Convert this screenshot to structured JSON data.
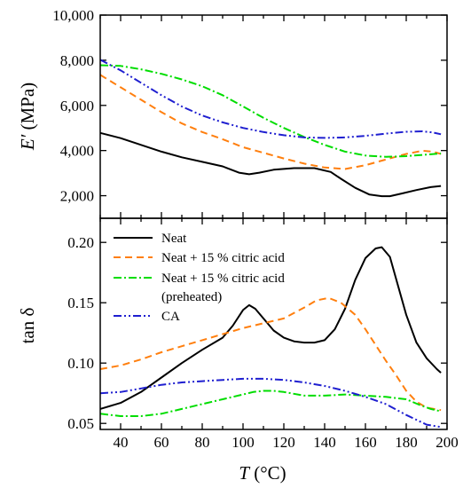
{
  "chart_data": [
    {
      "type": "line",
      "ylabel": "E′ (MPa)",
      "ylabel_italic_part": "E′",
      "ylabel_unit": "(MPa)",
      "xlim": [
        30,
        200
      ],
      "ylim": [
        1000,
        10000
      ],
      "ytick_values": [
        2000,
        4000,
        6000,
        8000,
        10000
      ],
      "ytick_labels": [
        "2,000",
        "4,000",
        "6,000",
        "8,000",
        "10,000"
      ],
      "series": [
        {
          "name": "Neat",
          "color": "#000000",
          "dash": "solid",
          "x": [
            30,
            40,
            50,
            60,
            70,
            80,
            90,
            98,
            103,
            108,
            115,
            125,
            135,
            143,
            148,
            155,
            162,
            168,
            172,
            178,
            185,
            192,
            197
          ],
          "y": [
            4780,
            4550,
            4250,
            3950,
            3700,
            3500,
            3300,
            3020,
            2950,
            3020,
            3150,
            3220,
            3220,
            3050,
            2750,
            2350,
            2050,
            1980,
            1980,
            2100,
            2250,
            2380,
            2430
          ]
        },
        {
          "name": "Neat + 15 % citric acid",
          "color": "#ff7f0e",
          "dash": "dashed",
          "x": [
            30,
            40,
            50,
            60,
            70,
            80,
            90,
            100,
            110,
            120,
            130,
            140,
            150,
            160,
            170,
            180,
            188,
            193,
            197
          ],
          "y": [
            7350,
            6800,
            6250,
            5700,
            5200,
            4820,
            4500,
            4150,
            3900,
            3650,
            3420,
            3250,
            3180,
            3350,
            3600,
            3850,
            3990,
            3950,
            3850
          ]
        },
        {
          "name": "Neat + 15 % citric acid (preheated)",
          "color": "#00dd00",
          "dash": "dashdot",
          "x": [
            30,
            40,
            50,
            60,
            70,
            80,
            90,
            100,
            110,
            120,
            130,
            140,
            150,
            160,
            170,
            180,
            190,
            197
          ],
          "y": [
            7780,
            7750,
            7600,
            7400,
            7150,
            6850,
            6450,
            5950,
            5450,
            5000,
            4600,
            4250,
            3950,
            3780,
            3720,
            3750,
            3820,
            3870
          ]
        },
        {
          "name": "CA",
          "color": "#1f1fd0",
          "dash": "dashdotdot",
          "x": [
            30,
            40,
            50,
            60,
            70,
            80,
            90,
            100,
            110,
            120,
            130,
            140,
            150,
            160,
            170,
            180,
            188,
            193,
            197
          ],
          "y": [
            8020,
            7550,
            7000,
            6450,
            5950,
            5550,
            5250,
            5000,
            4820,
            4680,
            4580,
            4560,
            4580,
            4650,
            4750,
            4830,
            4850,
            4800,
            4720
          ]
        }
      ]
    },
    {
      "type": "line",
      "ylabel": "tan δ",
      "xlabel": "T (°C)",
      "xlabel_italic_part": "T",
      "xlabel_unit": "(°C)",
      "xlim": [
        30,
        200
      ],
      "ylim": [
        0.045,
        0.22
      ],
      "xtick_labels": [
        "40",
        "60",
        "80",
        "100",
        "120",
        "140",
        "160",
        "180",
        "200"
      ],
      "ytick_values": [
        0.05,
        0.1,
        0.15,
        0.2
      ],
      "ytick_labels": [
        "0.05",
        "0.10",
        "0.15",
        "0.20"
      ],
      "legend": {
        "placement": "top-left",
        "entries": [
          "Neat",
          "Neat + 15 % citric acid",
          "Neat + 15 % citric acid",
          "CA"
        ],
        "continuation": "(preheated)"
      },
      "series": [
        {
          "name": "Neat",
          "color": "#000000",
          "dash": "solid",
          "x": [
            30,
            40,
            50,
            60,
            70,
            80,
            90,
            95,
            100,
            103,
            106,
            110,
            115,
            120,
            125,
            130,
            135,
            140,
            145,
            150,
            155,
            160,
            165,
            168,
            172,
            176,
            180,
            185,
            190,
            195,
            197
          ],
          "y": [
            0.062,
            0.067,
            0.076,
            0.088,
            0.1,
            0.111,
            0.121,
            0.131,
            0.144,
            0.148,
            0.145,
            0.137,
            0.127,
            0.121,
            0.118,
            0.117,
            0.117,
            0.119,
            0.128,
            0.145,
            0.169,
            0.187,
            0.195,
            0.196,
            0.188,
            0.164,
            0.14,
            0.117,
            0.104,
            0.095,
            0.092
          ]
        },
        {
          "name": "Neat + 15 % citric acid",
          "color": "#ff7f0e",
          "dash": "dashed",
          "x": [
            30,
            40,
            50,
            60,
            70,
            80,
            90,
            100,
            110,
            120,
            130,
            136,
            142,
            148,
            155,
            160,
            165,
            170,
            175,
            180,
            185,
            190,
            197
          ],
          "y": [
            0.095,
            0.098,
            0.103,
            0.109,
            0.114,
            0.119,
            0.124,
            0.129,
            0.133,
            0.137,
            0.146,
            0.152,
            0.154,
            0.15,
            0.14,
            0.128,
            0.115,
            0.102,
            0.09,
            0.077,
            0.068,
            0.063,
            0.061
          ]
        },
        {
          "name": "Neat + 15 % citric acid (preheated)",
          "color": "#00dd00",
          "dash": "dashdot",
          "x": [
            30,
            40,
            50,
            60,
            70,
            80,
            90,
            100,
            105,
            110,
            115,
            120,
            130,
            140,
            150,
            160,
            170,
            180,
            187,
            192,
            197
          ],
          "y": [
            0.058,
            0.056,
            0.056,
            0.058,
            0.062,
            0.066,
            0.07,
            0.074,
            0.076,
            0.077,
            0.077,
            0.076,
            0.073,
            0.073,
            0.074,
            0.073,
            0.072,
            0.07,
            0.065,
            0.062,
            0.06
          ]
        },
        {
          "name": "CA",
          "color": "#1f1fd0",
          "dash": "dashdotdot",
          "x": [
            30,
            40,
            50,
            60,
            70,
            80,
            90,
            100,
            110,
            120,
            130,
            140,
            150,
            160,
            170,
            180,
            190,
            197
          ],
          "y": [
            0.075,
            0.076,
            0.079,
            0.082,
            0.084,
            0.085,
            0.086,
            0.087,
            0.087,
            0.086,
            0.084,
            0.081,
            0.077,
            0.072,
            0.066,
            0.057,
            0.049,
            0.047
          ]
        }
      ]
    }
  ]
}
